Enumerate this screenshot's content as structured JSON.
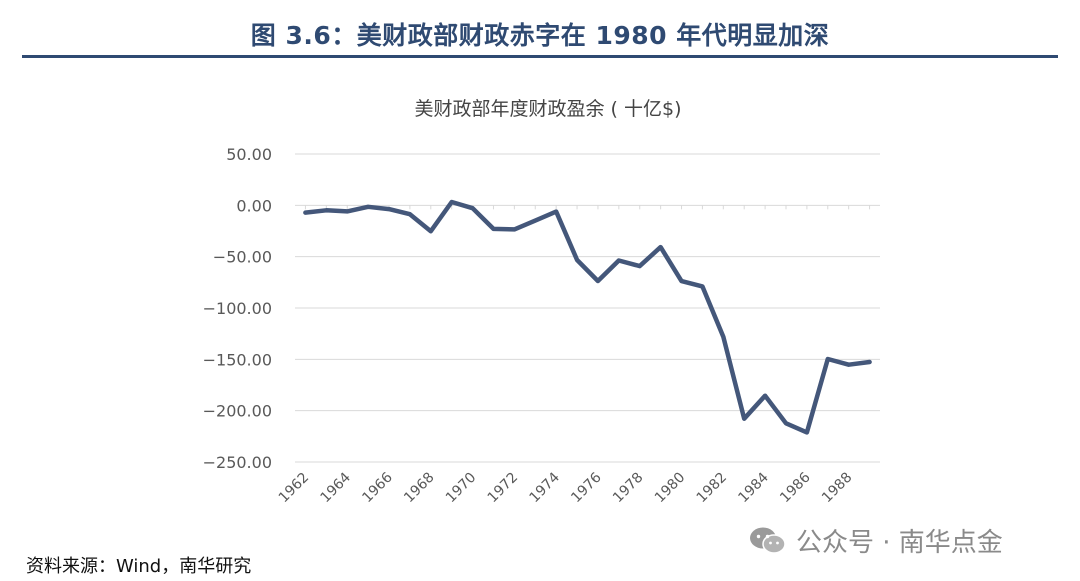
{
  "figure": {
    "title": "图 3.6：美财政部财政赤字在 1980 年代明显加深",
    "source": "资料来源：Wind，南华研究"
  },
  "watermark": {
    "icon": "wechat-icon",
    "text": "公众号 · 南华点金"
  },
  "colors": {
    "title": "#2f4a72",
    "line": "#44577a",
    "grid": "#d9d9d9"
  },
  "chart_data": {
    "type": "line",
    "title": "美财政部年度财政盈余 ( 十亿$)",
    "xlabel": "",
    "ylabel": "",
    "ylim": [
      -250,
      50
    ],
    "yticks": [
      50,
      0,
      -50,
      -100,
      -150,
      -200,
      -250
    ],
    "ytick_labels": [
      "50.00",
      "0.00",
      "−50.00",
      "−100.00",
      "−150.00",
      "−200.00",
      "−250.00"
    ],
    "xtick_labels": [
      "1962",
      "1964",
      "1966",
      "1968",
      "1970",
      "1972",
      "1974",
      "1976",
      "1978",
      "1980",
      "1982",
      "1984",
      "1986",
      "1988"
    ],
    "grid": true,
    "legend": "none",
    "x": [
      1962,
      1963,
      1964,
      1965,
      1966,
      1967,
      1968,
      1969,
      1970,
      1971,
      1972,
      1973,
      1974,
      1975,
      1976,
      1977,
      1978,
      1979,
      1980,
      1981,
      1982,
      1983,
      1984,
      1985,
      1986,
      1987,
      1988,
      1989
    ],
    "series": [
      {
        "name": "",
        "values": [
          -7.1,
          -4.8,
          -5.9,
          -1.4,
          -3.7,
          -8.6,
          -25.2,
          3.2,
          -2.8,
          -23.0,
          -23.4,
          -14.9,
          -6.1,
          -53.2,
          -73.7,
          -53.7,
          -59.2,
          -40.7,
          -73.8,
          -79.0,
          -128.0,
          -207.8,
          -185.4,
          -212.3,
          -221.2,
          -149.7,
          -155.2,
          -152.6
        ]
      }
    ]
  }
}
